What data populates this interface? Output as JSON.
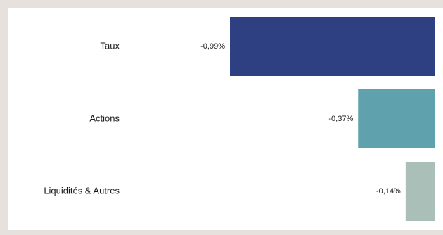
{
  "chart_data": {
    "type": "bar",
    "orientation": "horizontal",
    "categories": [
      "Taux",
      "Actions",
      "Liquidités & Autres"
    ],
    "values": [
      -0.99,
      -0.37,
      -0.14
    ],
    "value_labels": [
      "-0,99%",
      "-0,37%",
      "-0,14%"
    ],
    "colors": [
      "#2e3f82",
      "#5fa1ad",
      "#a9bfb7"
    ],
    "xlim": [
      -0.99,
      0
    ],
    "grid": false,
    "legend": "none"
  }
}
